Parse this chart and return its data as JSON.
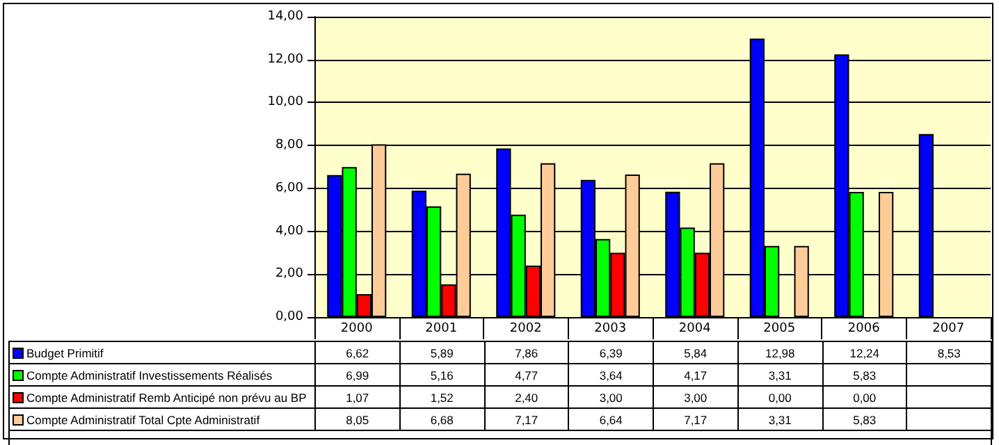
{
  "chart_data": {
    "type": "bar",
    "categories": [
      "2000",
      "2001",
      "2002",
      "2003",
      "2004",
      "2005",
      "2006",
      "2007"
    ],
    "series": [
      {
        "name": "Budget Primitif",
        "color": "#0000ff",
        "values": [
          6.62,
          5.89,
          7.86,
          6.39,
          5.84,
          12.98,
          12.24,
          8.53
        ],
        "value_labels": [
          "6,62",
          "5,89",
          "7,86",
          "6,39",
          "5,84",
          "12,98",
          "12,24",
          "8,53"
        ]
      },
      {
        "name": "Compte Administratif Investissements Réalisés",
        "color": "#00ff00",
        "values": [
          6.99,
          5.16,
          4.77,
          3.64,
          4.17,
          3.31,
          5.83,
          null
        ],
        "value_labels": [
          "6,99",
          "5,16",
          "4,77",
          "3,64",
          "4,17",
          "3,31",
          "5,83",
          null
        ]
      },
      {
        "name": "Compte Administratif Remb Anticipé non prévu au BP",
        "color": "#ff0000",
        "values": [
          1.07,
          1.52,
          2.4,
          3.0,
          3.0,
          0,
          0,
          null
        ],
        "value_labels": [
          "1,07",
          "1,52",
          "2,40",
          "3,00",
          "3,00",
          "0,00",
          "0,00",
          null
        ]
      },
      {
        "name": "Compte Administratif Total Cpte Administratif",
        "color": "#ffcc99",
        "values": [
          8.05,
          6.68,
          7.17,
          6.64,
          7.17,
          3.31,
          5.83,
          null
        ],
        "value_labels": [
          "8,05",
          "6,68",
          "7,17",
          "6,64",
          "7,17",
          "3,31",
          "5,83",
          null
        ]
      }
    ],
    "ylim": [
      0,
      14
    ],
    "yticks": [
      {
        "value": 0,
        "label": "0,00"
      },
      {
        "value": 2,
        "label": "2,00"
      },
      {
        "value": 4,
        "label": "4,00"
      },
      {
        "value": 6,
        "label": "6,00"
      },
      {
        "value": 8,
        "label": "8,00"
      },
      {
        "value": 10,
        "label": "10,00"
      },
      {
        "value": 12,
        "label": "12,00"
      },
      {
        "value": 14,
        "label": "14,00"
      }
    ],
    "grid": "y",
    "legend": "bottom left"
  }
}
